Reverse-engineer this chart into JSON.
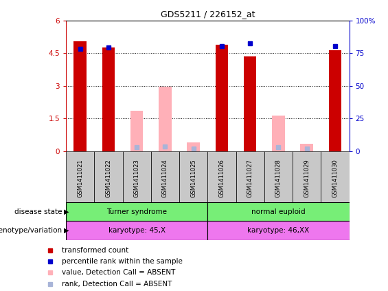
{
  "title": "GDS5211 / 226152_at",
  "samples": [
    "GSM1411021",
    "GSM1411022",
    "GSM1411023",
    "GSM1411024",
    "GSM1411025",
    "GSM1411026",
    "GSM1411027",
    "GSM1411028",
    "GSM1411029",
    "GSM1411030"
  ],
  "transformed_count": [
    5.05,
    4.75,
    null,
    null,
    null,
    4.88,
    4.35,
    null,
    null,
    4.62
  ],
  "percentile_rank": [
    78.5,
    79.5,
    null,
    null,
    null,
    80.5,
    82.5,
    null,
    null,
    80.5
  ],
  "absent_value": [
    null,
    null,
    1.85,
    2.95,
    0.42,
    null,
    null,
    1.65,
    0.35,
    null
  ],
  "absent_rank": [
    null,
    null,
    3.3,
    3.55,
    2.05,
    null,
    null,
    3.2,
    1.9,
    null
  ],
  "ylim_left": [
    0,
    6
  ],
  "ylim_right": [
    0,
    100
  ],
  "yticks_left": [
    0,
    1.5,
    3.0,
    4.5,
    6.0
  ],
  "yticks_right": [
    0,
    25,
    50,
    75,
    100
  ],
  "bar_width": 0.45,
  "red_color": "#CC0000",
  "blue_color": "#0000CC",
  "pink_color": "#FFB0B8",
  "lavender_color": "#A8B4D8",
  "disease_state_labels": [
    "Turner syndrome",
    "normal euploid"
  ],
  "genotype_labels": [
    "karyotype: 45,X",
    "karyotype: 46,XX"
  ],
  "green_color": "#77EE77",
  "magenta_color": "#EE77EE",
  "tick_bg_color": "#C8C8C8",
  "legend_items": [
    {
      "color": "#CC0000",
      "label": "transformed count"
    },
    {
      "color": "#0000CC",
      "label": "percentile rank within the sample"
    },
    {
      "color": "#FFB0B8",
      "label": "value, Detection Call = ABSENT"
    },
    {
      "color": "#A8B4D8",
      "label": "rank, Detection Call = ABSENT"
    }
  ]
}
